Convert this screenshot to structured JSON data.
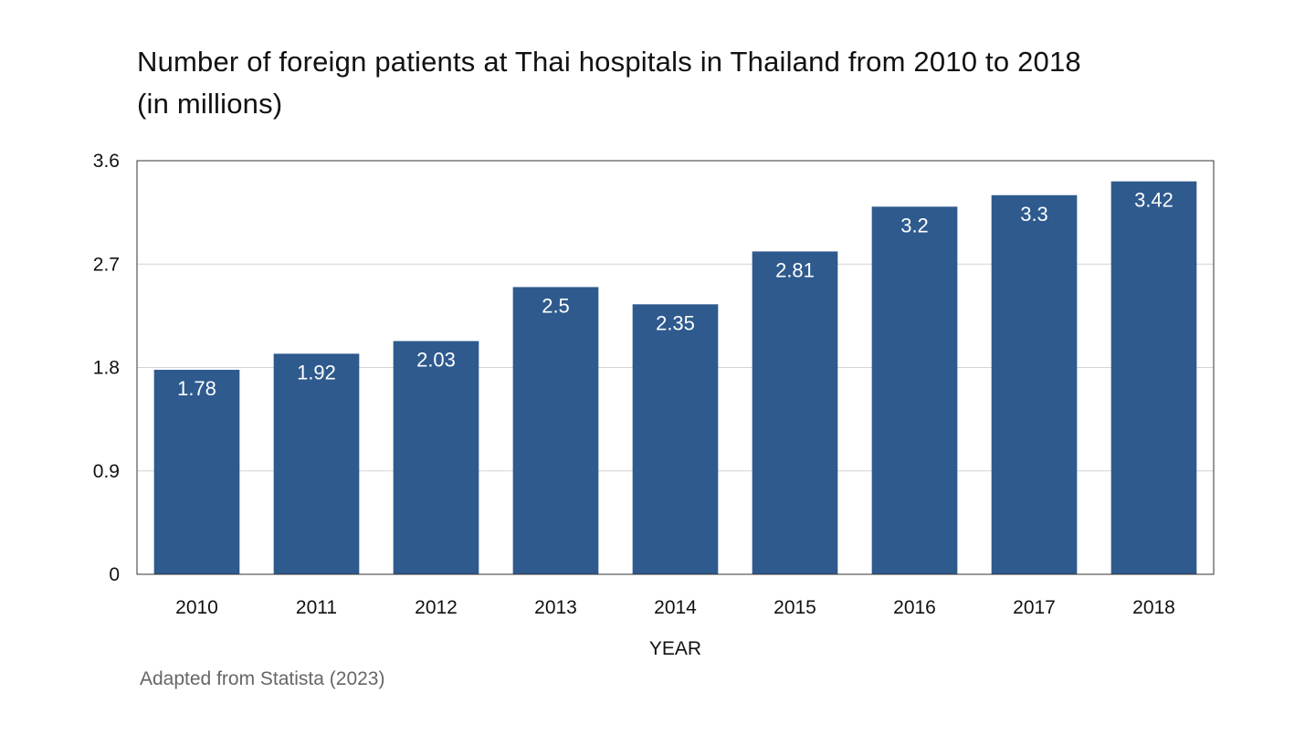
{
  "title_lines": [
    "Number of foreign patients at Thai hospitals in Thailand from 2010 to 2018",
    "(in millions)"
  ],
  "source": "Adapted from Statista (2023)",
  "colors": {
    "bar": "#2e5a8e",
    "grid": "#d4d4d4",
    "frame": "#333333"
  },
  "chart_data": {
    "type": "bar",
    "title": "Number of foreign patients at Thai hospitals in Thailand from 2010 to 2018 (in millions)",
    "xlabel": "YEAR",
    "ylabel": "",
    "categories": [
      "2010",
      "2011",
      "2012",
      "2013",
      "2014",
      "2015",
      "2016",
      "2017",
      "2018"
    ],
    "values": [
      1.78,
      1.92,
      2.03,
      2.5,
      2.35,
      2.81,
      3.2,
      3.3,
      3.42
    ],
    "data_labels": [
      "1.78",
      "1.92",
      "2.03",
      "2.5",
      "2.35",
      "2.81",
      "3.2",
      "3.3",
      "3.42"
    ],
    "ylim": [
      0,
      3.6
    ],
    "yticks": [
      0,
      0.9,
      1.8,
      2.7,
      3.6
    ],
    "ytick_labels": [
      "0",
      "0.9",
      "1.8",
      "2.7",
      "3.6"
    ],
    "grid": true,
    "legend": "none"
  }
}
